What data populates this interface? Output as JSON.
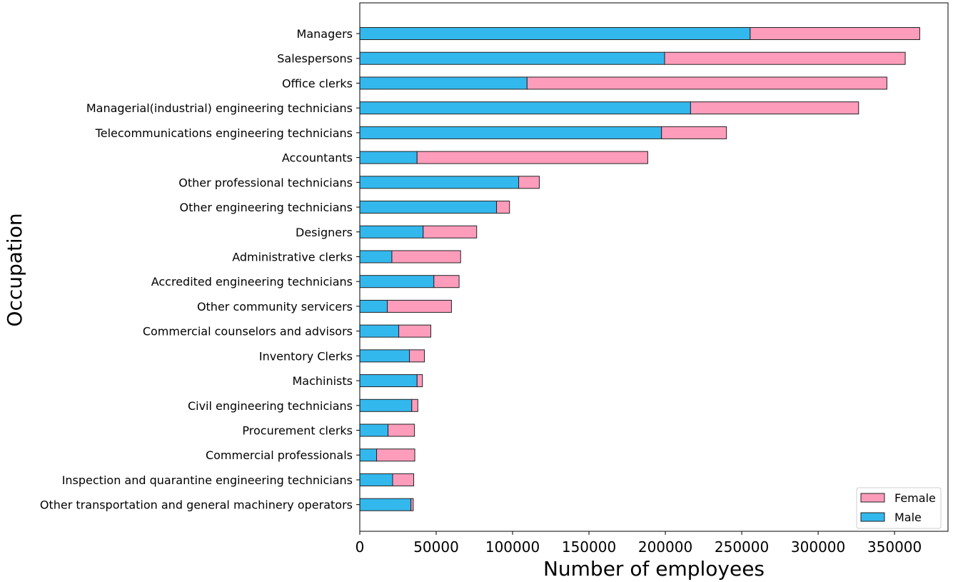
{
  "chart_data": {
    "type": "bar",
    "orientation": "horizontal",
    "stacked": true,
    "title": "",
    "xlabel": "Number of employees",
    "ylabel": "Occupation",
    "xlim": [
      0,
      385000
    ],
    "xticks": [
      0,
      50000,
      100000,
      150000,
      200000,
      250000,
      300000,
      350000
    ],
    "xtick_labels": [
      "0",
      "50000",
      "100000",
      "150000",
      "200000",
      "250000",
      "300000",
      "350000"
    ],
    "grid": false,
    "legend_position": "bottom-right",
    "categories": [
      "Managers",
      "Salespersons",
      "Office clerks",
      "Managerial(industrial) engineering technicians",
      "Telecommunications engineering technicians",
      "Accountants",
      "Other professional technicians",
      "Other engineering technicians",
      "Designers",
      "Administrative clerks",
      "Accredited engineering technicians",
      "Other community servicers",
      "Commercial counselors and advisors",
      "Inventory Clerks",
      "Machinists",
      "Civil engineering technicians",
      "Procurement clerks",
      "Commercial professionals",
      "Inspection and quarantine engineering technicians",
      "Other transportation and general machinery operators"
    ],
    "series": [
      {
        "name": "Male",
        "color": "#33b8ee",
        "values": [
          255500,
          199500,
          109500,
          216500,
          197500,
          37500,
          104000,
          89500,
          41500,
          21000,
          48500,
          18000,
          25500,
          32500,
          37500,
          34000,
          18500,
          11000,
          21500,
          33500
        ]
      },
      {
        "name": "Female",
        "color": "#fd9cbb",
        "values": [
          111000,
          157500,
          235500,
          110000,
          42500,
          151000,
          13500,
          8500,
          35000,
          45000,
          16500,
          42000,
          21000,
          9800,
          3500,
          4000,
          17300,
          25000,
          13800,
          1500
        ]
      }
    ],
    "legend_entries": [
      "Female",
      "Male"
    ]
  }
}
